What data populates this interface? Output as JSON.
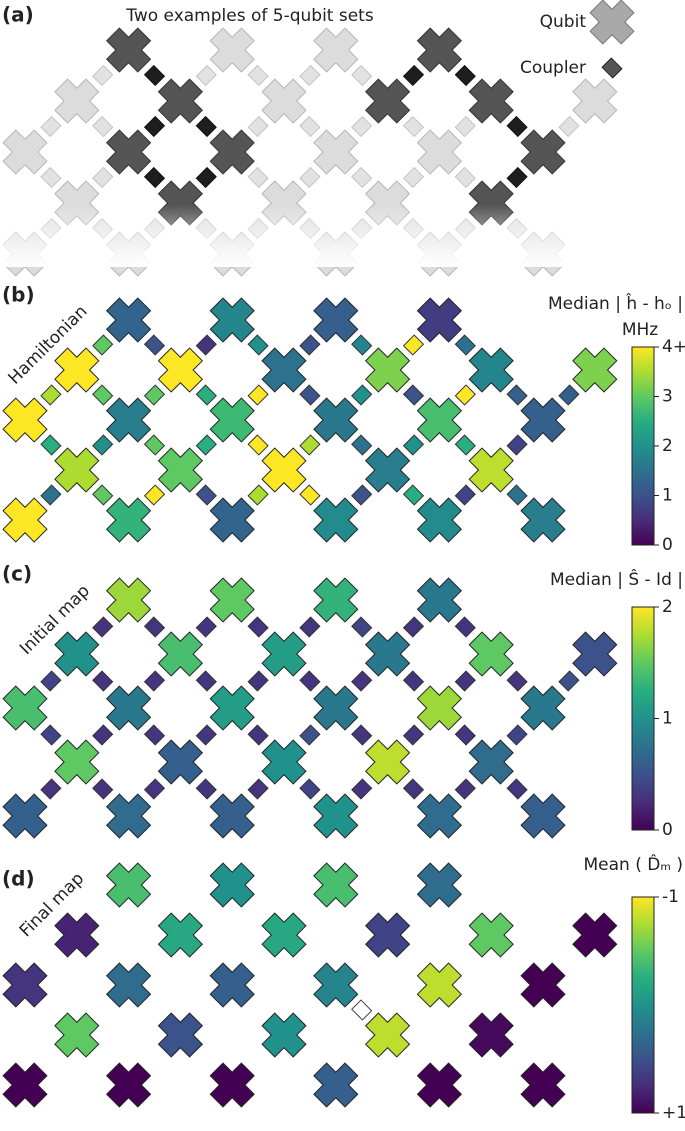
{
  "chart_data": [
    {
      "type": "lattice",
      "label": "(a)",
      "title": "Two examples of 5-qubit sets",
      "legend": [
        "Qubit",
        "Coupler"
      ]
    },
    {
      "type": "heatmap-lattice",
      "label": "(b)",
      "row_label": "Hamiltonian",
      "title": "Median | ĥ - hₒ |",
      "unit": "MHz",
      "qubits": [
        [
          null,
          null,
          1.3,
          null,
          1.8,
          null,
          1.2,
          null,
          0.7,
          null,
          null,
          null
        ],
        [
          null,
          4,
          null,
          4,
          null,
          1.5,
          null,
          3.2,
          null,
          1.8,
          null,
          3.2
        ],
        [
          4,
          null,
          1.7,
          null,
          2.7,
          null,
          1.6,
          null,
          2.8,
          null,
          1.2,
          null
        ],
        [
          null,
          3.5,
          null,
          3,
          null,
          4,
          null,
          1.7,
          null,
          3.6,
          null,
          null
        ],
        [
          4,
          null,
          2.6,
          null,
          1.3,
          null,
          1.9,
          null,
          1.9,
          null,
          1.7,
          null
        ]
      ],
      "couplers": [
        [
          null,
          3,
          1,
          0.6,
          2,
          1,
          1.8,
          4,
          1.5,
          null,
          null
        ],
        [
          3.5,
          3,
          3,
          2.5,
          4,
          1,
          2,
          1,
          4,
          1.2,
          1.2
        ],
        [
          2.5,
          2,
          3,
          2.5,
          4,
          3.5,
          1.5,
          2,
          2.5,
          0.8,
          null
        ],
        [
          1.5,
          3,
          4,
          1,
          3.5,
          4,
          1,
          2.5,
          0.8,
          1.5,
          null
        ]
      ],
      "ylim": [
        0,
        4
      ],
      "yticks": [
        0,
        1,
        2,
        3,
        {
          "value": 4,
          "label": "4+"
        }
      ]
    },
    {
      "type": "heatmap-lattice",
      "label": "(c)",
      "row_label": "Initial map",
      "title": "Median | Ŝ - Id |",
      "qubits": [
        [
          null,
          null,
          1.7,
          null,
          1.5,
          null,
          1.3,
          null,
          0.8,
          null,
          null,
          null
        ],
        [
          null,
          1,
          null,
          1.4,
          null,
          1.1,
          null,
          0.8,
          null,
          1.5,
          null,
          0.5
        ],
        [
          1.4,
          null,
          0.8,
          null,
          1.1,
          null,
          0.8,
          null,
          1.7,
          null,
          0.8,
          null
        ],
        [
          null,
          1.5,
          null,
          0.6,
          null,
          1,
          null,
          1.8,
          null,
          0.7,
          null,
          null
        ],
        [
          0.6,
          null,
          0.7,
          null,
          0.6,
          null,
          1,
          null,
          0.7,
          null,
          0.6,
          null
        ]
      ],
      "couplers": [
        [
          null,
          0.3,
          0.3,
          0.3,
          0.3,
          0.3,
          0.4,
          0.3,
          0.3,
          null,
          null
        ],
        [
          0.4,
          0.3,
          0.3,
          0.3,
          0.3,
          0.3,
          0.3,
          0.3,
          0.3,
          0.3,
          0.5
        ],
        [
          0.4,
          0.3,
          0.3,
          0.3,
          0.3,
          0.5,
          0.3,
          0.3,
          0.3,
          0.4,
          null
        ],
        [
          0.3,
          0.3,
          0.3,
          0.3,
          0.3,
          0.4,
          0.3,
          0.3,
          0.3,
          0.3,
          null
        ]
      ],
      "ylim": [
        0,
        2
      ],
      "yticks": [
        0,
        1,
        2
      ]
    },
    {
      "type": "heatmap-lattice",
      "label": "(d)",
      "row_label": "Final map",
      "title": "Mean ( D̂ₘ )",
      "qubits": [
        [
          null,
          null,
          -0.4,
          null,
          0,
          null,
          -0.4,
          null,
          0.3,
          null,
          null,
          null
        ],
        [
          null,
          0.8,
          null,
          -0.2,
          null,
          -0.2,
          null,
          0.6,
          null,
          -0.5,
          null,
          1
        ],
        [
          0.7,
          null,
          0.3,
          null,
          0.4,
          null,
          0.1,
          null,
          -0.8,
          null,
          1,
          null
        ],
        [
          null,
          -0.5,
          null,
          0.5,
          null,
          0,
          null,
          -0.8,
          null,
          0.95,
          null,
          null
        ],
        [
          1,
          null,
          1,
          null,
          1,
          null,
          0.4,
          null,
          1,
          null,
          1,
          null
        ]
      ],
      "ylim": [
        1,
        -1
      ],
      "yticks": [
        -1,
        {
          "value": 1,
          "label": "+1"
        }
      ]
    }
  ]
}
